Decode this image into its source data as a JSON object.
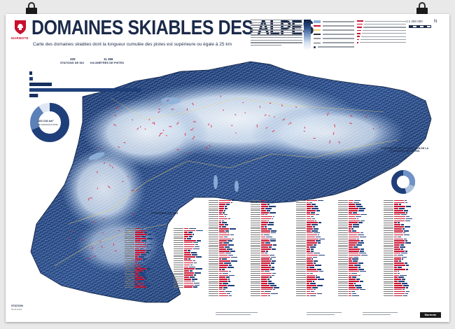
{
  "poster": {
    "logo_text": "MARMOTE",
    "title": "DOMAINES SKIABLES DES ALPES",
    "subtitle": "Carte des domaines skiables dont la longueur cumulée des pistes est supérieure ou égale à 25 km",
    "scale": "1:1 250 000",
    "compass": "N"
  },
  "stats": {
    "stations_count": "325",
    "stations_label": "STATIONS DE SKI",
    "km_count": "11 356",
    "km_label": "KILOMÈTRES DE PISTES",
    "donut_value": "100 218 km²",
    "donut_label": "DE SURFACE ALPINE"
  },
  "bar_chart": {
    "values": [
      7,
      200,
      1300,
      6500,
      500
    ]
  },
  "donut2": {
    "label": "STATIONS DE SKI EN FONCTION DE LA LONGUEUR DES PISTES"
  },
  "stations_list": {
    "title": "STATIONS DE SKI"
  },
  "footer": {
    "badge": "STATION",
    "date": "05.06.2019",
    "brand": "Marmote"
  },
  "colors": {
    "navy": "#1b2a4a",
    "accent_red": "#c8102e",
    "map_deep": "#12285a",
    "map_mid": "#3d62a1",
    "map_light": "#d7e4f2"
  }
}
